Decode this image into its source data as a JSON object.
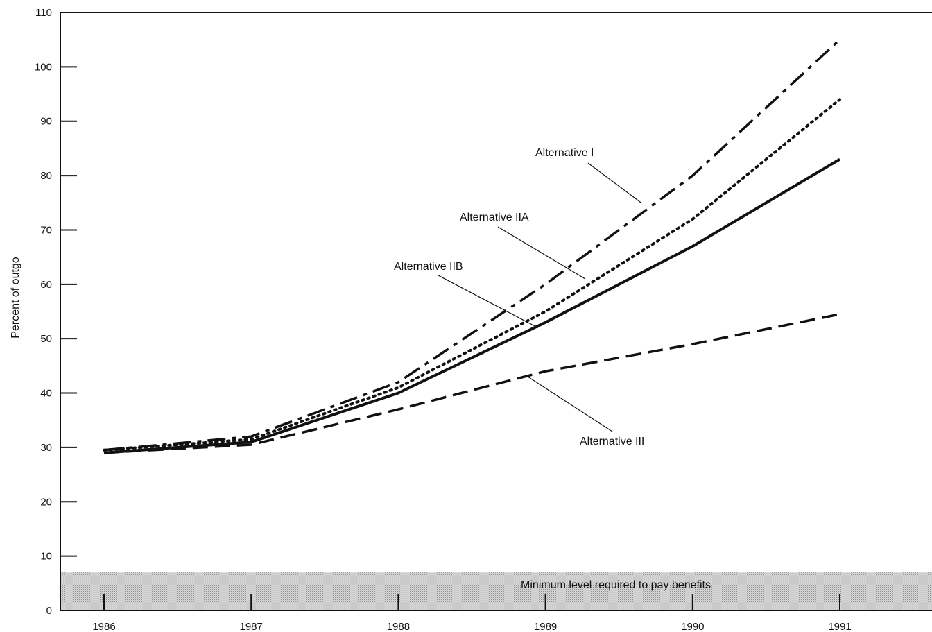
{
  "chart_data": {
    "type": "line",
    "title": "",
    "xlabel": "",
    "ylabel": "Percent of outgo",
    "x": [
      1986,
      1987,
      1988,
      1989,
      1990,
      1991
    ],
    "x_tick_labels": [
      "1986",
      "1987",
      "1988",
      "1989",
      "1990",
      "1991"
    ],
    "y_ticks": [
      0,
      10,
      20,
      30,
      40,
      50,
      60,
      70,
      80,
      90,
      100,
      110
    ],
    "y_tick_labels": [
      "0",
      "10",
      "20",
      "30",
      "40",
      "50",
      "60",
      "70",
      "80",
      "90",
      "100",
      "110"
    ],
    "ylim": [
      0,
      110
    ],
    "xlim": [
      1985.72,
      1991.62
    ],
    "grid": false,
    "legend": "none (series labeled directly on plot)",
    "series": [
      {
        "name": "Alternative I",
        "style": "dash-dot",
        "values": [
          29.5,
          32,
          42,
          60,
          80,
          105
        ]
      },
      {
        "name": "Alternative IIA",
        "style": "dotted",
        "values": [
          29.5,
          31.5,
          41,
          55,
          72,
          94
        ]
      },
      {
        "name": "Alternative IIB",
        "style": "solid",
        "values": [
          29,
          31,
          40,
          53,
          67,
          83
        ]
      },
      {
        "name": "Alternative III",
        "style": "dashed",
        "values": [
          29,
          30.5,
          37,
          44,
          49,
          54.5
        ]
      }
    ],
    "annotations": [
      {
        "text": "Minimum level required to pay benefits",
        "band": [
          0,
          7
        ]
      }
    ],
    "colors": {
      "line": "#111111",
      "band": "#c4c4c4"
    }
  }
}
